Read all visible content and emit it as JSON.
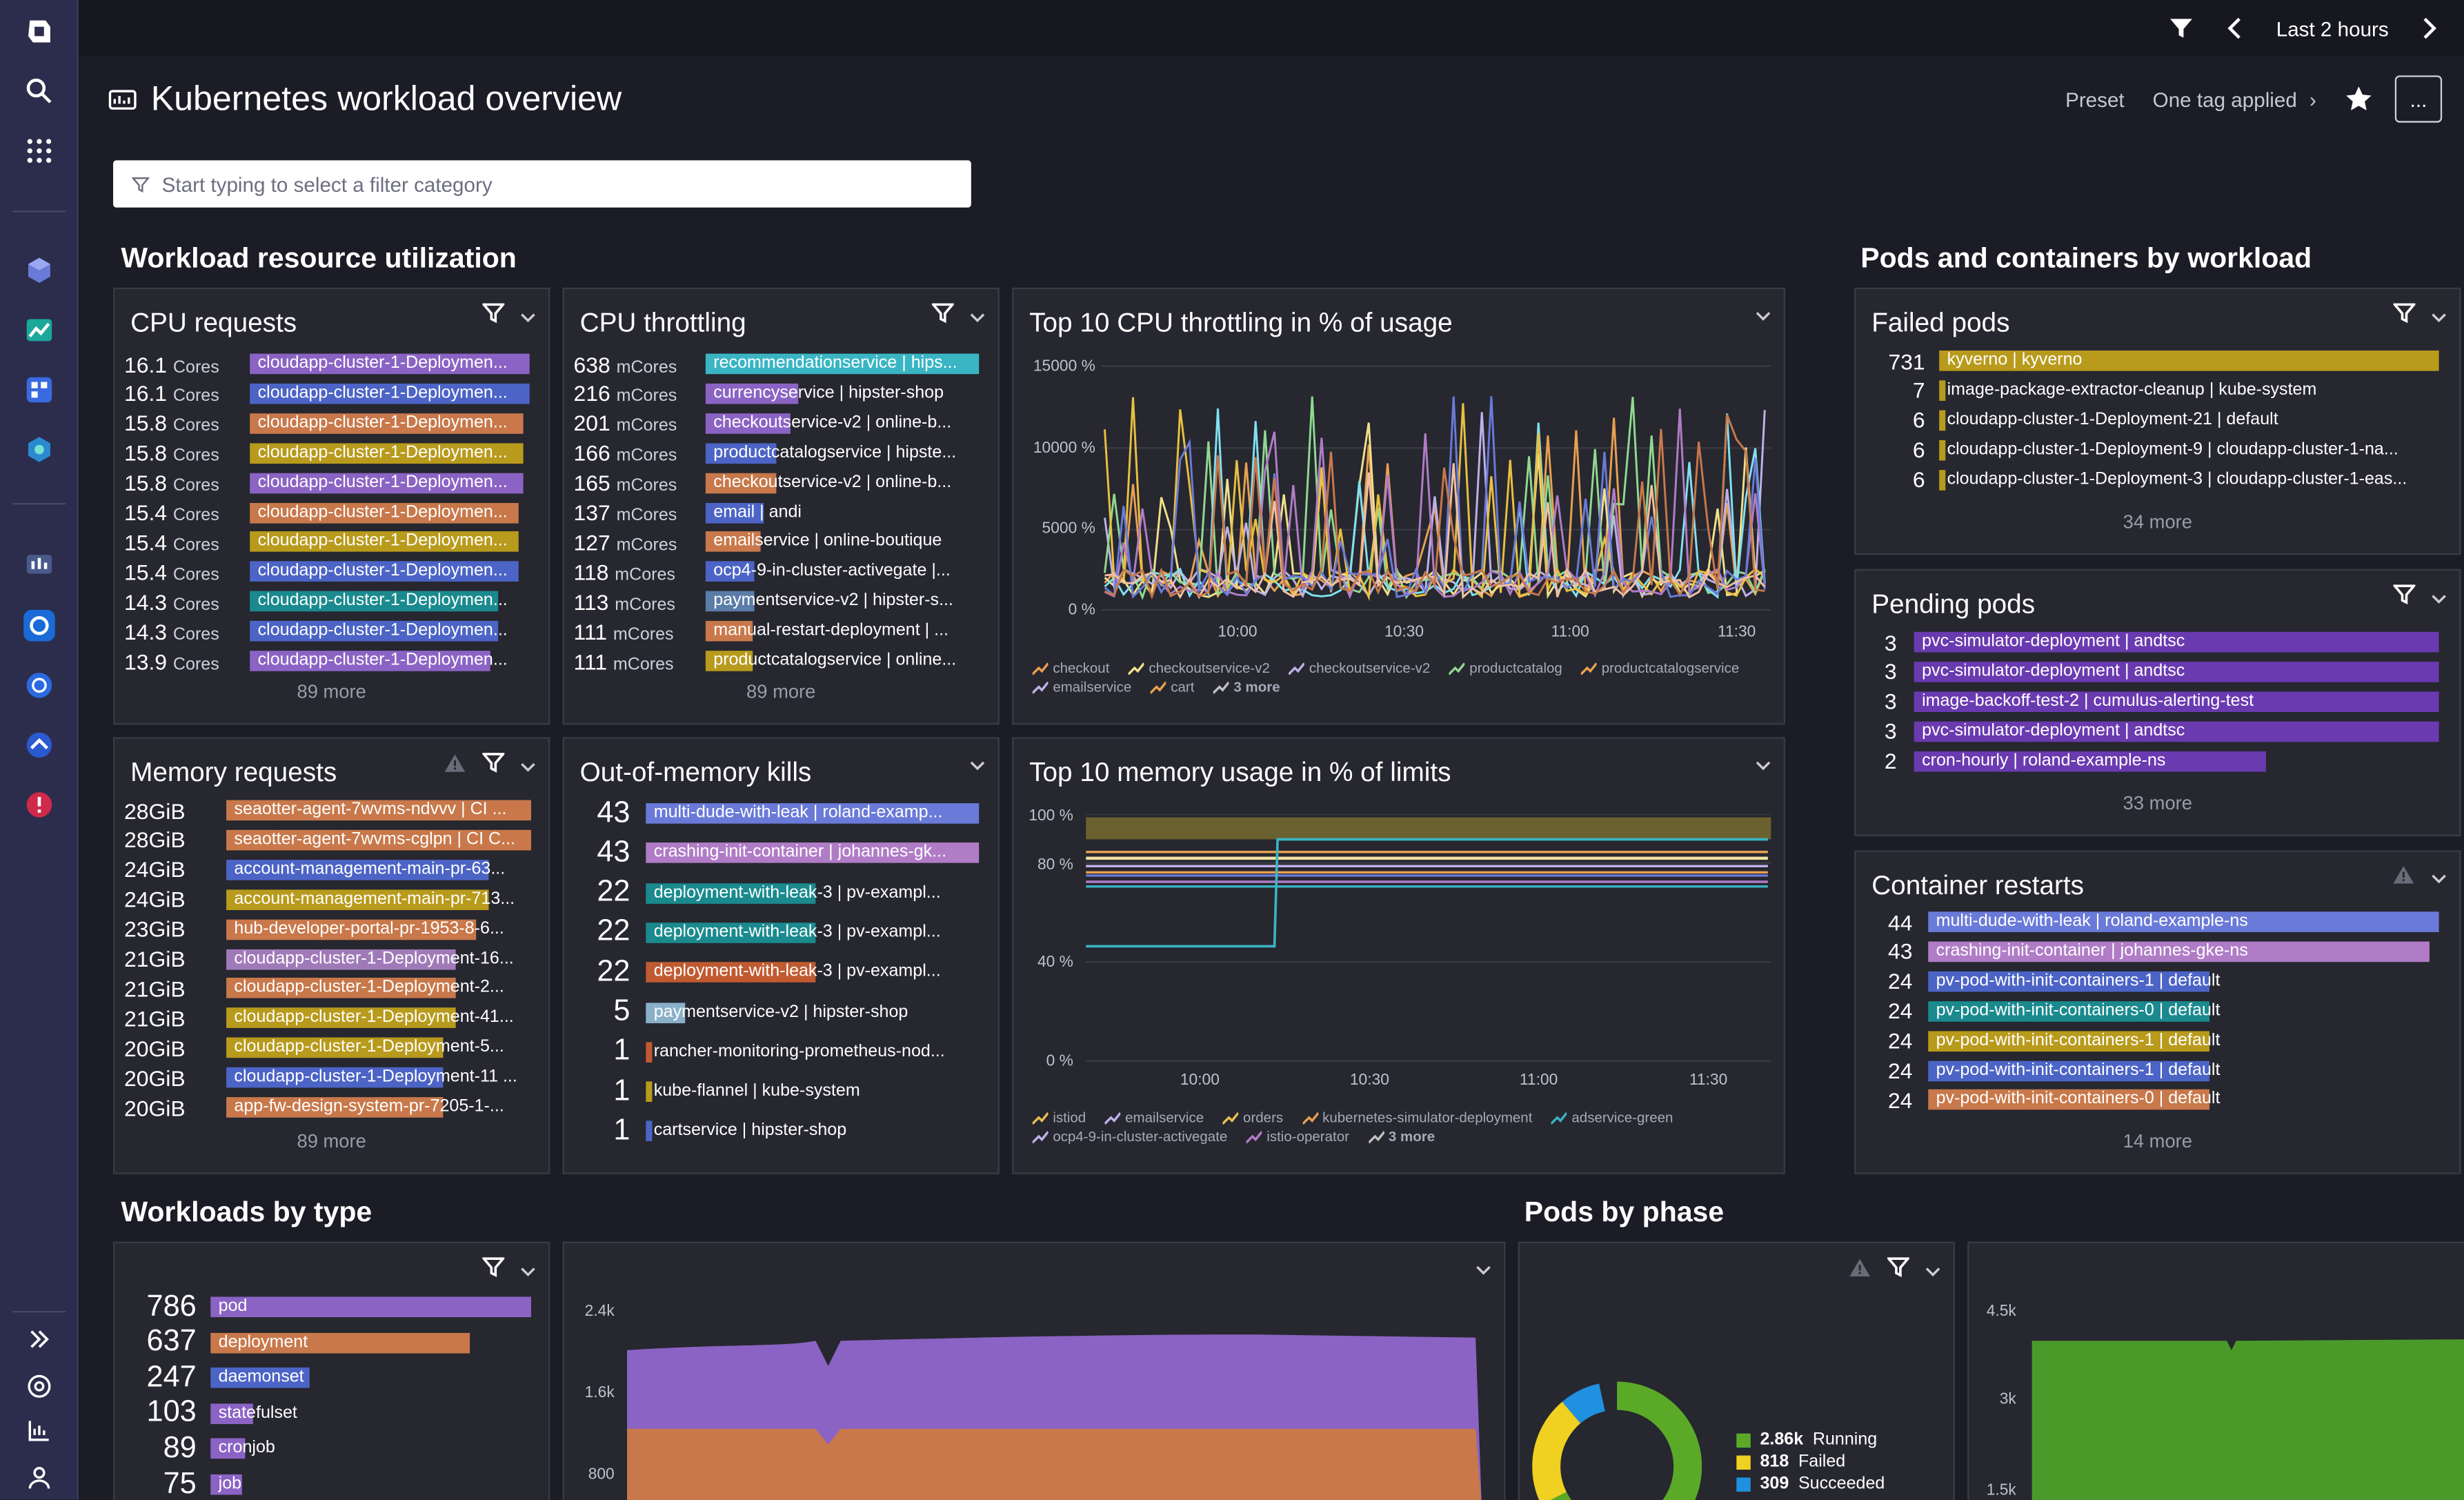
{
  "topbar": {
    "time_range": "Last 2 hours"
  },
  "header": {
    "title": "Kubernetes workload overview",
    "preset": "Preset",
    "tag": "One tag applied",
    "menu": "..."
  },
  "filter": {
    "placeholder": "Start typing to select a filter category"
  },
  "sections": {
    "utilization": "Workload resource utilization",
    "pods_containers": "Pods and containers by workload",
    "workloads_by_type": "Workloads by type",
    "pods_by_phase": "Pods by phase"
  },
  "colors": {
    "purple": "#8b63c4",
    "blue": "#4c64c6",
    "orange": "#c8784a",
    "gold": "#b89a1c",
    "teal": "#1a8a8e",
    "cyan": "#3ab5c3",
    "lavender": "#b07cc6",
    "mauve": "#a07ab8",
    "slate": "#5a7ca8"
  },
  "cpu_requests": {
    "title": "CPU requests",
    "more": "89 more",
    "rows": [
      {
        "num": "16.1",
        "unit": "Cores",
        "label": "cloudapp-cluster-1-Deploymen...",
        "color": "#8b63c4",
        "pct": 100
      },
      {
        "num": "16.1",
        "unit": "Cores",
        "label": "cloudapp-cluster-1-Deploymen...",
        "color": "#4c64c6",
        "pct": 100
      },
      {
        "num": "15.8",
        "unit": "Cores",
        "label": "cloudapp-cluster-1-Deploymen...",
        "color": "#c8784a",
        "pct": 98
      },
      {
        "num": "15.8",
        "unit": "Cores",
        "label": "cloudapp-cluster-1-Deploymen...",
        "color": "#b89a1c",
        "pct": 98
      },
      {
        "num": "15.8",
        "unit": "Cores",
        "label": "cloudapp-cluster-1-Deploymen...",
        "color": "#8b63c4",
        "pct": 98
      },
      {
        "num": "15.4",
        "unit": "Cores",
        "label": "cloudapp-cluster-1-Deploymen...",
        "color": "#c8784a",
        "pct": 96
      },
      {
        "num": "15.4",
        "unit": "Cores",
        "label": "cloudapp-cluster-1-Deploymen...",
        "color": "#b89a1c",
        "pct": 96
      },
      {
        "num": "15.4",
        "unit": "Cores",
        "label": "cloudapp-cluster-1-Deploymen...",
        "color": "#4c64c6",
        "pct": 96
      },
      {
        "num": "14.3",
        "unit": "Cores",
        "label": "cloudapp-cluster-1-Deploymen...",
        "color": "#1a8a8e",
        "pct": 89
      },
      {
        "num": "14.3",
        "unit": "Cores",
        "label": "cloudapp-cluster-1-Deploymen...",
        "color": "#4c64c6",
        "pct": 89
      },
      {
        "num": "13.9",
        "unit": "Cores",
        "label": "cloudapp-cluster-1-Deploymen...",
        "color": "#8b63c4",
        "pct": 86
      }
    ]
  },
  "cpu_throttling": {
    "title": "CPU throttling",
    "more": "89 more",
    "rows": [
      {
        "num": "638",
        "unit": "mCores",
        "label": "recommendationservice | hips...",
        "color": "#3ab5c3",
        "pct": 100
      },
      {
        "num": "216",
        "unit": "mCores",
        "label": "currencyservice | hipster-shop",
        "color": "#8b63c4",
        "pct": 34
      },
      {
        "num": "201",
        "unit": "mCores",
        "label": "checkoutservice-v2 | online-b...",
        "color": "#8b63c4",
        "pct": 31
      },
      {
        "num": "166",
        "unit": "mCores",
        "label": "productcatalogservice | hipste...",
        "color": "#4c64c6",
        "pct": 26
      },
      {
        "num": "165",
        "unit": "mCores",
        "label": "checkoutservice-v2 | online-b...",
        "color": "#c8784a",
        "pct": 26
      },
      {
        "num": "137",
        "unit": "mCores",
        "label": "email | andi",
        "color": "#4c64c6",
        "pct": 21
      },
      {
        "num": "127",
        "unit": "mCores",
        "label": "emailservice | online-boutique",
        "color": "#c8784a",
        "pct": 20
      },
      {
        "num": "118",
        "unit": "mCores",
        "label": "ocp4-9-in-cluster-activegate |...",
        "color": "#4c64c6",
        "pct": 18
      },
      {
        "num": "113",
        "unit": "mCores",
        "label": "paymentservice-v2 | hipster-s...",
        "color": "#5a7ca8",
        "pct": 18
      },
      {
        "num": "111",
        "unit": "mCores",
        "label": "manual-restart-deployment | ...",
        "color": "#c8784a",
        "pct": 17
      },
      {
        "num": "111",
        "unit": "mCores",
        "label": "productcatalogservice | online...",
        "color": "#b89a1c",
        "pct": 17
      }
    ]
  },
  "top_cpu": {
    "title": "Top 10 CPU throttling in % of usage",
    "y_ticks": [
      "15000 %",
      "10000 %",
      "5000 %",
      "0 %"
    ],
    "x_ticks": [
      "10:00",
      "10:30",
      "11:00",
      "11:30"
    ],
    "legend": [
      {
        "name": "checkout",
        "color": "#e8a050"
      },
      {
        "name": "checkoutservice-v2",
        "color": "#f0e08a"
      },
      {
        "name": "checkoutservice-v2",
        "color": "#c0b0e8"
      },
      {
        "name": "productcatalog",
        "color": "#90d890"
      },
      {
        "name": "productcatalogservice",
        "color": "#e8a050"
      },
      {
        "name": "emailservice",
        "color": "#c0b0e8"
      },
      {
        "name": "cart",
        "color": "#e8a050"
      },
      {
        "name": "3 more",
        "color": "#c0c0c0"
      }
    ]
  },
  "memory_requests": {
    "title": "Memory requests",
    "more": "89 more",
    "rows": [
      {
        "num": "28GiB",
        "label": "seaotter-agent-7wvms-ndvvv | CI ...",
        "color": "#c8784a",
        "pct": 100
      },
      {
        "num": "28GiB",
        "label": "seaotter-agent-7wvms-cglpn | CI C...",
        "color": "#c8784a",
        "pct": 100
      },
      {
        "num": "24GiB",
        "label": "account-management-main-pr-63...",
        "color": "#4c64c6",
        "pct": 86
      },
      {
        "num": "24GiB",
        "label": "account-management-main-pr-713...",
        "color": "#b89a1c",
        "pct": 86
      },
      {
        "num": "23GiB",
        "label": "hub-developer-portal-pr-1953-8-6...",
        "color": "#c8784a",
        "pct": 82
      },
      {
        "num": "21GiB",
        "label": "cloudapp-cluster-1-Deployment-16...",
        "color": "#a07ab8",
        "pct": 75
      },
      {
        "num": "21GiB",
        "label": "cloudapp-cluster-1-Deployment-2...",
        "color": "#c8784a",
        "pct": 75
      },
      {
        "num": "21GiB",
        "label": "cloudapp-cluster-1-Deployment-41...",
        "color": "#b89a1c",
        "pct": 75
      },
      {
        "num": "20GiB",
        "label": "cloudapp-cluster-1-Deployment-5...",
        "color": "#b89a1c",
        "pct": 71
      },
      {
        "num": "20GiB",
        "label": "cloudapp-cluster-1-Deployment-11 ...",
        "color": "#4c64c6",
        "pct": 71
      },
      {
        "num": "20GiB",
        "label": "app-fw-design-system-pr-7205-1-...",
        "color": "#c8784a",
        "pct": 71
      }
    ]
  },
  "oom_kills": {
    "title": "Out-of-memory kills",
    "rows": [
      {
        "num": "43",
        "label": "multi-dude-with-leak | roland-examp...",
        "color": "#6a7ad8",
        "pct": 100
      },
      {
        "num": "43",
        "label": "crashing-init-container | johannes-gk...",
        "color": "#b07cc6",
        "pct": 100
      },
      {
        "num": "22",
        "label": "deployment-with-leak-3 | pv-exampl...",
        "color": "#1a8a8e",
        "pct": 51
      },
      {
        "num": "22",
        "label": "deployment-with-leak-3 | pv-exampl...",
        "color": "#1a8a8e",
        "pct": 51
      },
      {
        "num": "22",
        "label": "deployment-with-leak-3 | pv-exampl...",
        "color": "#c05a30",
        "pct": 51
      },
      {
        "num": "5",
        "label": "paymentservice-v2 | hipster-shop",
        "color": "#8ab0c8",
        "pct": 12
      },
      {
        "num": "1",
        "label": "rancher-monitoring-prometheus-nod...",
        "color": "#c05a30",
        "pct": 2
      },
      {
        "num": "1",
        "label": "kube-flannel | kube-system",
        "color": "#b89a1c",
        "pct": 2
      },
      {
        "num": "1",
        "label": "cartservice | hipster-shop",
        "color": "#4c64c6",
        "pct": 2
      }
    ]
  },
  "top_mem": {
    "title": "Top 10 memory usage in % of limits",
    "y_ticks": [
      "100 %",
      "80 %",
      "40 %",
      "0 %"
    ],
    "x_ticks": [
      "10:00",
      "10:30",
      "11:00",
      "11:30"
    ],
    "legend": [
      {
        "name": "istiod",
        "color": "#e8c050"
      },
      {
        "name": "emailservice",
        "color": "#c0b0e8"
      },
      {
        "name": "orders",
        "color": "#e8c050"
      },
      {
        "name": "kubernetes-simulator-deployment",
        "color": "#e8a050"
      },
      {
        "name": "adservice-green",
        "color": "#3ab5c3"
      },
      {
        "name": "ocp4-9-in-cluster-activegate",
        "color": "#c0b0e8"
      },
      {
        "name": "istio-operator",
        "color": "#b07cc6"
      },
      {
        "name": "3 more",
        "color": "#c0c0c0"
      }
    ]
  },
  "failed_pods": {
    "title": "Failed pods",
    "more": "34 more",
    "rows": [
      {
        "num": "731",
        "label": "kyverno | kyverno",
        "color": "#b89a1c",
        "pct": 100
      },
      {
        "num": "7",
        "label": "image-package-extractor-cleanup | kube-system",
        "color": "#b89a1c",
        "pct": 1
      },
      {
        "num": "6",
        "label": "cloudapp-cluster-1-Deployment-21 | default",
        "color": "#b89a1c",
        "pct": 1
      },
      {
        "num": "6",
        "label": "cloudapp-cluster-1-Deployment-9 | cloudapp-cluster-1-na...",
        "color": "#b89a1c",
        "pct": 1
      },
      {
        "num": "6",
        "label": "cloudapp-cluster-1-Deployment-3 | cloudapp-cluster-1-eas...",
        "color": "#b89a1c",
        "pct": 1
      }
    ]
  },
  "pending_pods": {
    "title": "Pending pods",
    "more": "33 more",
    "rows": [
      {
        "num": "3",
        "label": "pvc-simulator-deployment | andtsc",
        "color": "#6a3ab0",
        "pct": 100
      },
      {
        "num": "3",
        "label": "pvc-simulator-deployment | andtsc",
        "color": "#6a3ab0",
        "pct": 100
      },
      {
        "num": "3",
        "label": "image-backoff-test-2 | cumulus-alerting-test",
        "color": "#6a3ab0",
        "pct": 100
      },
      {
        "num": "3",
        "label": "pvc-simulator-deployment | andtsc",
        "color": "#6a3ab0",
        "pct": 100
      },
      {
        "num": "2",
        "label": "cron-hourly | roland-example-ns",
        "color": "#6a3ab0",
        "pct": 67
      }
    ]
  },
  "container_restarts": {
    "title": "Container restarts",
    "more": "14 more",
    "rows": [
      {
        "num": "44",
        "label": "multi-dude-with-leak | roland-example-ns",
        "color": "#6a7ad8",
        "pct": 100
      },
      {
        "num": "43",
        "label": "crashing-init-container | johannes-gke-ns",
        "color": "#b07cc6",
        "pct": 98
      },
      {
        "num": "24",
        "label": "pv-pod-with-init-containers-1 | default",
        "color": "#4c64c6",
        "pct": 55
      },
      {
        "num": "24",
        "label": "pv-pod-with-init-containers-0 | default",
        "color": "#1a8a8e",
        "pct": 55
      },
      {
        "num": "24",
        "label": "pv-pod-with-init-containers-1 | default",
        "color": "#b89a1c",
        "pct": 55
      },
      {
        "num": "24",
        "label": "pv-pod-with-init-containers-1 | default",
        "color": "#4c64c6",
        "pct": 55
      },
      {
        "num": "24",
        "label": "pv-pod-with-init-containers-0 | default",
        "color": "#c8784a",
        "pct": 55
      }
    ]
  },
  "workloads_type": {
    "rows": [
      {
        "num": "786",
        "label": "pod",
        "color": "#8b63c4",
        "pct": 100
      },
      {
        "num": "637",
        "label": "deployment",
        "color": "#c8784a",
        "pct": 81
      },
      {
        "num": "247",
        "label": "daemonset",
        "color": "#4c64c6",
        "pct": 31
      },
      {
        "num": "103",
        "label": "statefulset",
        "color": "#8b63c4",
        "pct": 13
      },
      {
        "num": "89",
        "label": "cronjob",
        "color": "#8b63c4",
        "pct": 11
      },
      {
        "num": "75",
        "label": "job",
        "color": "#8b63c4",
        "pct": 10
      }
    ]
  },
  "workloads_area": {
    "y_ticks": [
      "2.4k",
      "1.6k",
      "800"
    ]
  },
  "pods_phase": {
    "legend": [
      {
        "value": "2.86k",
        "name": "Running",
        "color": "#5aaa28"
      },
      {
        "value": "818",
        "name": "Failed",
        "color": "#f0d020"
      },
      {
        "value": "309",
        "name": "Succeeded",
        "color": "#2090e0"
      }
    ]
  },
  "pods_area": {
    "y_ticks": [
      "4.5k",
      "3k",
      "1.5k"
    ]
  }
}
